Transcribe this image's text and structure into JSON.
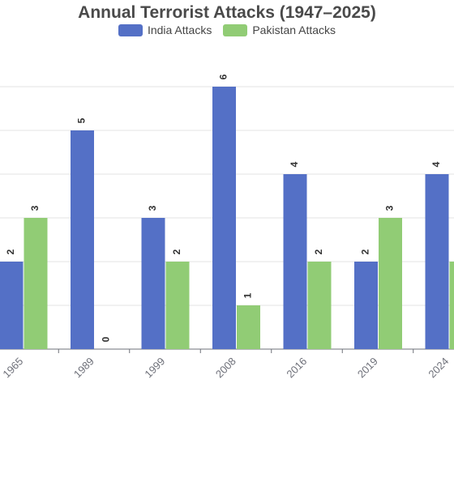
{
  "chart_data": {
    "type": "bar",
    "title": "Annual Terrorist Attacks (1947–2025)",
    "categories": [
      "1965",
      "1989",
      "1999",
      "2008",
      "2016",
      "2019",
      "2024"
    ],
    "series": [
      {
        "name": "India Attacks",
        "color": "#5470c6",
        "values": [
          2,
          5,
          3,
          6,
          4,
          2,
          4
        ]
      },
      {
        "name": "Pakistan Attacks",
        "color": "#91cc75",
        "values": [
          3,
          0,
          2,
          1,
          2,
          3,
          2
        ]
      }
    ],
    "ylim": [
      0,
      6
    ],
    "grid": true,
    "legend_position": "top-center"
  }
}
